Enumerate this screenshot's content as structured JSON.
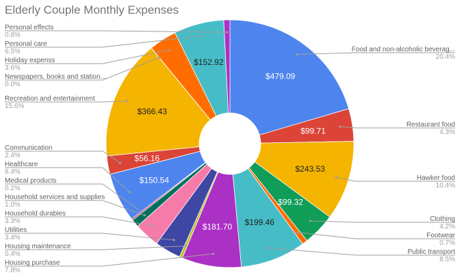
{
  "chart_data": {
    "type": "pie",
    "donut": true,
    "title": "Elderly Couple Monthly Expenses",
    "slices": [
      {
        "label": "Food and non-alcoholic beverag...",
        "value": 479.09,
        "percent": "20.4%",
        "value_label": "$479.09",
        "color": "#4e84ee",
        "side": "right"
      },
      {
        "label": "Restaurant food",
        "value": 99.71,
        "percent": "4.3%",
        "value_label": "$99.71",
        "color": "#db4437",
        "side": "right"
      },
      {
        "label": "Hawker food",
        "value": 243.53,
        "percent": "10.4%",
        "value_label": "$243.53",
        "color": "#f4b400",
        "side": "right"
      },
      {
        "label": "Clothing",
        "value": 99.32,
        "percent": "4.2%",
        "value_label": "$99.32",
        "color": "#0f9d58",
        "side": "right"
      },
      {
        "label": "Footwear",
        "value": 16.4,
        "percent": "0.7%",
        "value_label": "",
        "color": "#ff6d01",
        "side": "right"
      },
      {
        "label": "Public transport",
        "value": 199.46,
        "percent": "8.5%",
        "value_label": "$199.46",
        "color": "#46bdc6",
        "side": "right"
      },
      {
        "label": "Housing purchase",
        "value": 181.7,
        "percent": "7.8%",
        "value_label": "$181.70",
        "color": "#ab30c4",
        "side": "left"
      },
      {
        "label": "Housing maintenance",
        "value": 9.4,
        "percent": "0.4%",
        "value_label": "",
        "color": "#b9c42a",
        "side": "left"
      },
      {
        "label": "Utilities",
        "value": 79.8,
        "percent": "3.4%",
        "value_label": "",
        "color": "#3f47a5",
        "side": "left"
      },
      {
        "label": "Household durables",
        "value": 77.5,
        "percent": "3.3%",
        "value_label": "",
        "color": "#f77ba8",
        "side": "left"
      },
      {
        "label": "Household services and supplies",
        "value": 23.5,
        "percent": "1.0%",
        "value_label": "",
        "color": "#02705c",
        "side": "left"
      },
      {
        "label": "Medical products",
        "value": 4.7,
        "percent": "0.2%",
        "value_label": "",
        "color": "#c4255a",
        "side": "left"
      },
      {
        "label": "Healthcare",
        "value": 150.54,
        "percent": "6.4%",
        "value_label": "$150.54",
        "color": "#4e84ee",
        "side": "left"
      },
      {
        "label": "Communication",
        "value": 56.16,
        "percent": "2.4%",
        "value_label": "$56.16",
        "color": "#db4437",
        "side": "left"
      },
      {
        "label": "Recreation and entertainment",
        "value": 366.43,
        "percent": "15.6%",
        "value_label": "$366.43",
        "color": "#f4b400",
        "side": "left"
      },
      {
        "label": "Newspapers, books and station...",
        "value": 0.5,
        "percent": "0.0%",
        "value_label": "",
        "color": "#0f9d58",
        "side": "left"
      },
      {
        "label": "Holiday expenss",
        "value": 84.5,
        "percent": "3.6%",
        "value_label": "",
        "color": "#ff6d01",
        "side": "left"
      },
      {
        "label": "Personal care",
        "value": 152.92,
        "percent": "6.5%",
        "value_label": "$152.92",
        "color": "#46bdc6",
        "side": "left"
      },
      {
        "label": "Personal effects",
        "value": 18.8,
        "percent": "0.8%",
        "value_label": "",
        "color": "#ab30c4",
        "side": "left"
      }
    ],
    "dark_text_colors": [
      "#f4b400",
      "#46bdc6"
    ]
  }
}
